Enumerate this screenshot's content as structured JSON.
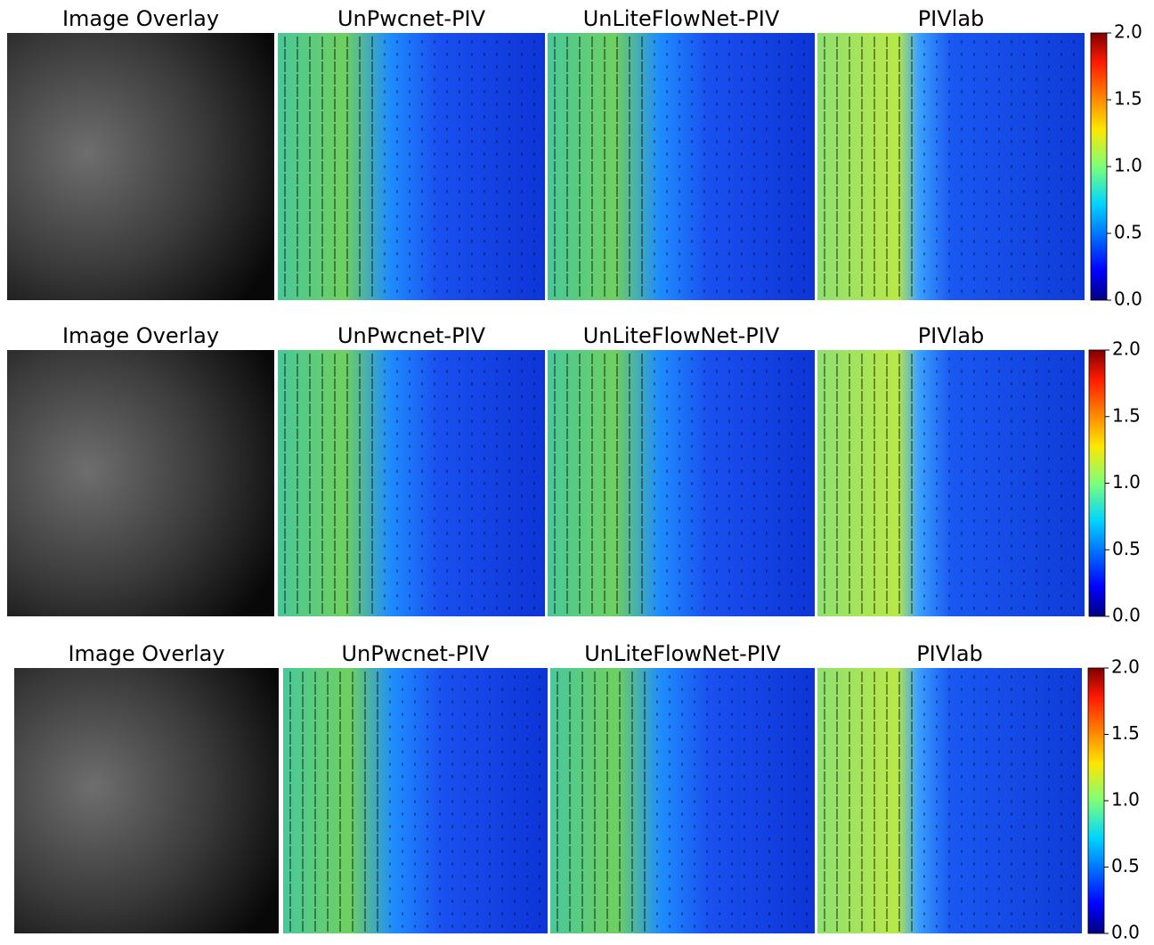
{
  "rows": [
    {
      "panels": [
        "Image Overlay",
        "UnPwcnet-PIV",
        "UnLiteFlowNet-PIV",
        "PIVlab"
      ],
      "colorbar": {
        "lim": [
          0,
          2
        ],
        "ticks": [
          {
            "value": 0,
            "label": "0.0"
          },
          {
            "value": 0.5,
            "label": "0.5"
          },
          {
            "value": 1,
            "label": "1.0"
          },
          {
            "value": 1.5,
            "label": "1.5"
          },
          {
            "value": 2,
            "label": "2.0"
          }
        ]
      }
    },
    {
      "panels": [
        "Image Overlay",
        "UnPwcnet-PIV",
        "UnLiteFlowNet-PIV",
        "PIVlab"
      ],
      "colorbar": {
        "lim": [
          0,
          2
        ],
        "ticks": [
          {
            "value": 0,
            "label": "0.0"
          },
          {
            "value": 0.5,
            "label": "0.5"
          },
          {
            "value": 1,
            "label": "1.0"
          },
          {
            "value": 1.5,
            "label": "1.5"
          },
          {
            "value": 2,
            "label": "2.0"
          }
        ]
      }
    },
    {
      "panels": [
        "Image Overlay",
        "UnPwcnet-PIV",
        "UnLiteFlowNet-PIV",
        "PIVlab"
      ],
      "colorbar": {
        "lim": [
          0,
          2
        ],
        "ticks": [
          {
            "value": 0,
            "label": "0.0"
          },
          {
            "value": 0.5,
            "label": "0.5"
          },
          {
            "value": 1,
            "label": "1.0"
          },
          {
            "value": 1.5,
            "label": "1.5"
          },
          {
            "value": 2,
            "label": "2.0"
          }
        ]
      }
    }
  ]
}
